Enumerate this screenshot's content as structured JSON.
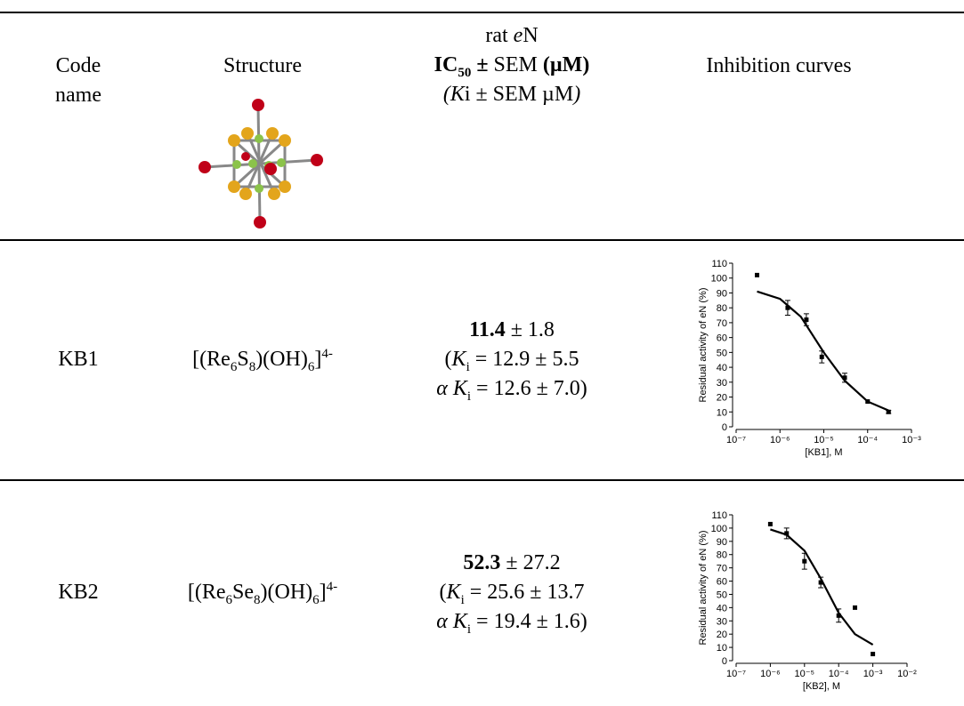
{
  "symbols": {
    "pm": "±",
    "eq": "=",
    "alpha": "α",
    "k": "K",
    "i": "i",
    "open": "(",
    "close": ")"
  },
  "table": {
    "header": {
      "code": "Code name",
      "structure": "Structure",
      "activity": {
        "line1": [
          "rat",
          "e",
          "N"
        ],
        "line2": [
          "IC",
          "50",
          "±",
          "SEM",
          "(µM)"
        ],
        "line3": [
          "(",
          "K",
          "i",
          "± SEM µM",
          ")"
        ]
      },
      "curves": "Inhibition curves"
    },
    "rows": [
      {
        "code": "KB1",
        "formula": [
          "[(Re",
          "6",
          "S",
          "8",
          ")(OH)",
          "6",
          "]",
          "4-"
        ],
        "ic50": "11.4",
        "ic50_sem": "1.8",
        "ki": "12.9",
        "ki_sem": "5.5",
        "aki": "12.6",
        "aki_sem": "7.0",
        "chart": {
          "type": "scatter",
          "y_label": "Residual activity of eN (%)",
          "x_label": "[KB1], M",
          "log_x": true,
          "color": "#000000",
          "xlim": [
            1e-07,
            0.001
          ],
          "xticks": [
            {
              "value": 1e-07,
              "label": "10⁻⁷"
            },
            {
              "value": 1e-06,
              "label": "10⁻⁶"
            },
            {
              "value": 1e-05,
              "label": "10⁻⁵"
            },
            {
              "value": 0.0001,
              "label": "10⁻⁴"
            },
            {
              "value": 0.001,
              "label": "10⁻³"
            }
          ],
          "ylim": [
            0,
            110
          ],
          "yticks": [
            0,
            10,
            20,
            30,
            40,
            50,
            60,
            70,
            80,
            90,
            100,
            110
          ],
          "x": [
            3e-07,
            1.5e-06,
            4e-06,
            9e-06,
            3e-05,
            0.0001,
            0.0003
          ],
          "values": [
            102,
            80,
            72,
            47,
            33,
            17,
            10
          ],
          "errors": [
            null,
            5,
            4,
            4,
            3,
            null,
            1
          ],
          "fit": {
            "x": [
              3e-07,
              1e-06,
              3e-06,
              1e-05,
              3e-05,
              0.0001,
              0.0003
            ],
            "values": [
              91,
              86,
              74,
              50,
              31,
              17,
              11
            ]
          }
        }
      },
      {
        "code": "KB2",
        "formula": [
          "[(Re",
          "6",
          "Se",
          "8",
          ")(OH)",
          "6",
          "]",
          "4-"
        ],
        "ic50": "52.3",
        "ic50_sem": "27.2",
        "ki": "25.6",
        "ki_sem": "13.7",
        "aki": "19.4",
        "aki_sem": "1.6",
        "chart": {
          "type": "scatter",
          "y_label": "Residual activity of eN (%)",
          "x_label": "[KB2], M",
          "log_x": true,
          "color": "#000000",
          "xlim": [
            1e-07,
            0.01
          ],
          "xticks": [
            {
              "value": 1e-07,
              "label": "10⁻⁷"
            },
            {
              "value": 1e-06,
              "label": "10⁻⁶"
            },
            {
              "value": 1e-05,
              "label": "10⁻⁵"
            },
            {
              "value": 0.0001,
              "label": "10⁻⁴"
            },
            {
              "value": 0.001,
              "label": "10⁻³"
            },
            {
              "value": 0.01,
              "label": "10⁻²"
            }
          ],
          "ylim": [
            0,
            110
          ],
          "yticks": [
            0,
            10,
            20,
            30,
            40,
            50,
            60,
            70,
            80,
            90,
            100,
            110
          ],
          "x": [
            1e-06,
            3e-06,
            1e-05,
            3e-05,
            0.0001,
            0.0003,
            0.001
          ],
          "values": [
            103,
            96,
            75,
            59,
            34,
            40,
            5
          ],
          "errors": [
            null,
            4,
            6,
            4,
            5,
            null,
            null
          ],
          "fit": {
            "x": [
              1e-06,
              3e-06,
              1e-05,
              3e-05,
              0.0001,
              0.0003,
              0.001
            ],
            "values": [
              99,
              95,
              83,
              62,
              36,
              20,
              12
            ]
          }
        }
      }
    ]
  }
}
